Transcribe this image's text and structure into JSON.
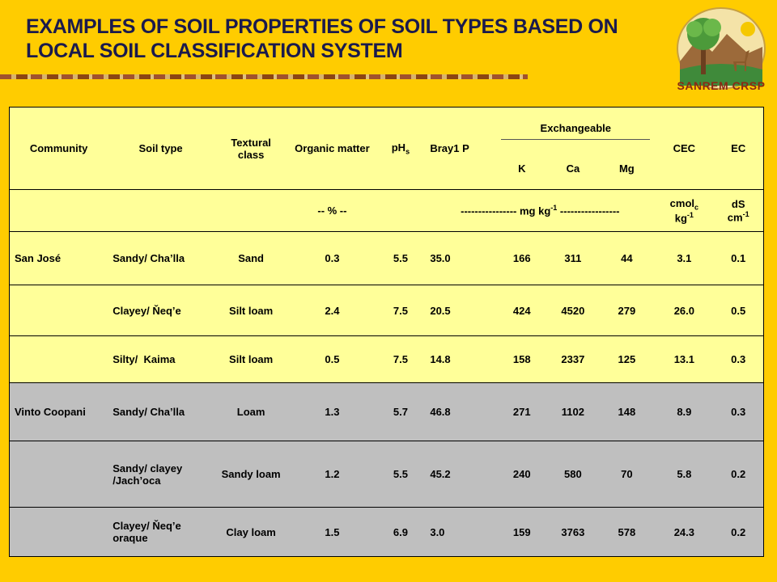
{
  "title": {
    "line1": "EXAMPLES OF SOIL PROPERTIES OF SOIL TYPES BASED ON",
    "line2": "LOCAL SOIL CLASSIFICATION SYSTEM"
  },
  "logo": {
    "text": "SANREM CRSP"
  },
  "table": {
    "header": {
      "community": "Community",
      "soil_type": "Soil type",
      "textural": "Textural class",
      "organic": "Organic matter",
      "ph": "pH",
      "ph_sub": "s",
      "bray": "Bray1 P",
      "exchangeable": "Exchangeable",
      "k": "K",
      "ca": "Ca",
      "mg": "Mg",
      "cec": "CEC",
      "ec": "EC"
    },
    "units": {
      "organic": "-- % --",
      "mg_pre": "---------------- mg kg",
      "mg_sup": "-1",
      "mg_post": " -----------------",
      "cec_a": "cmol",
      "cec_sub": "c",
      "cec_b": "kg",
      "cec_sup": "-1",
      "ec_a": "dS",
      "ec_b": "cm",
      "ec_sup": "-1"
    },
    "rows": [
      {
        "community": "San José",
        "soil": "Sandy/ Cha’lla",
        "texture": "Sand",
        "om": "0.3",
        "ph": "5.5",
        "p": "35.0",
        "k": "166",
        "ca": "311",
        "mg": "44",
        "cec": "3.1",
        "ec": "0.1"
      },
      {
        "community": "",
        "soil": "Clayey/ Ňeq’e",
        "texture": "Silt loam",
        "om": "2.4",
        "ph": "7.5",
        "p": "20.5",
        "k": "424",
        "ca": "4520",
        "mg": "279",
        "cec": "26.0",
        "ec": "0.5"
      },
      {
        "community": "",
        "soil": "Silty/  Kaima",
        "texture": "Silt loam",
        "om": "0.5",
        "ph": "7.5",
        "p": "14.8",
        "k": "158",
        "ca": "2337",
        "mg": "125",
        "cec": "13.1",
        "ec": "0.3"
      },
      {
        "community": "Vinto Coopani",
        "soil": "Sandy/ Cha’lla",
        "texture": "Loam",
        "om": "1.3",
        "ph": "5.7",
        "p": "46.8",
        "k": "271",
        "ca": "1102",
        "mg": "148",
        "cec": "8.9",
        "ec": "0.3"
      },
      {
        "community": "",
        "soil": "Sandy/ clayey /Jach’oca",
        "texture": "Sandy loam",
        "om": "1.2",
        "ph": "5.5",
        "p": "45.2",
        "k": "240",
        "ca": "580",
        "mg": "70",
        "cec": "5.8",
        "ec": "0.2"
      },
      {
        "community": "",
        "soil": "Clayey/ Ňeq’e oraque",
        "texture": "Clay loam",
        "om": "1.5",
        "ph": "6.9",
        "p": "3.0",
        "k": "159",
        "ca": "3763",
        "mg": "578",
        "cec": "24.3",
        "ec": "0.2"
      }
    ]
  }
}
